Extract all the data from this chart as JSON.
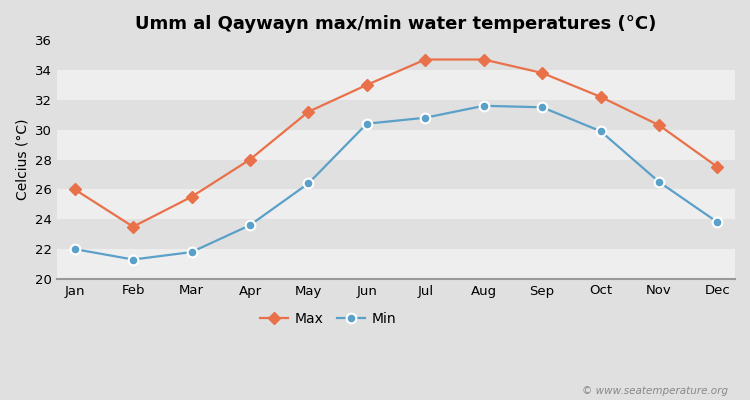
{
  "title": "Umm al Qaywayn max/min water temperatures (°C)",
  "ylabel": "Celcius (°C)",
  "months": [
    "Jan",
    "Feb",
    "Mar",
    "Apr",
    "May",
    "Jun",
    "Jul",
    "Aug",
    "Sep",
    "Oct",
    "Nov",
    "Dec"
  ],
  "max_temps": [
    26.0,
    23.5,
    25.5,
    28.0,
    31.2,
    33.0,
    34.7,
    34.7,
    33.8,
    32.2,
    30.3,
    27.5
  ],
  "min_temps": [
    22.0,
    21.3,
    21.8,
    23.6,
    26.4,
    30.4,
    30.8,
    31.6,
    31.5,
    29.9,
    26.5,
    23.8
  ],
  "max_color": "#e8714a",
  "min_color": "#5aa0c8",
  "fig_bg_color": "#e0e0e0",
  "plot_bg_color": "#e8e8e8",
  "band_color_light": "#eeeeee",
  "band_color_dark": "#e0e0e0",
  "ylim": [
    20,
    36
  ],
  "yticks": [
    20,
    22,
    24,
    26,
    28,
    30,
    32,
    34,
    36
  ],
  "legend_labels": [
    "Max",
    "Min"
  ],
  "watermark": "© www.seatemperature.org",
  "title_fontsize": 13,
  "axis_label_fontsize": 10,
  "tick_fontsize": 9.5,
  "legend_fontsize": 10
}
